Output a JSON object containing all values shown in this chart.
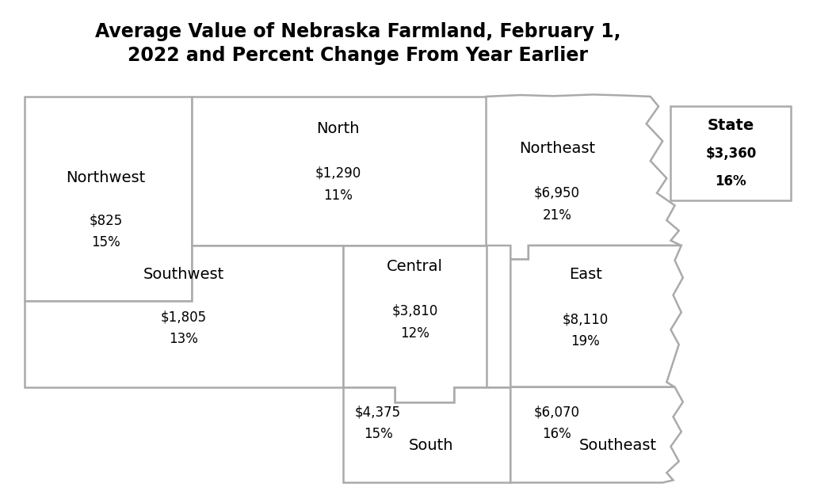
{
  "title": "Average Value of Nebraska Farmland, February 1,\n2022 and Percent Change From Year Earlier",
  "title_fontsize": 17,
  "bg_color": "#ffffff",
  "border_color": "#aaaaaa",
  "border_lw": 1.8,
  "state_box": {
    "label": "State",
    "value": "$3,360",
    "pct": "16%"
  },
  "label_fontsize": 14,
  "data_fontsize": 12
}
